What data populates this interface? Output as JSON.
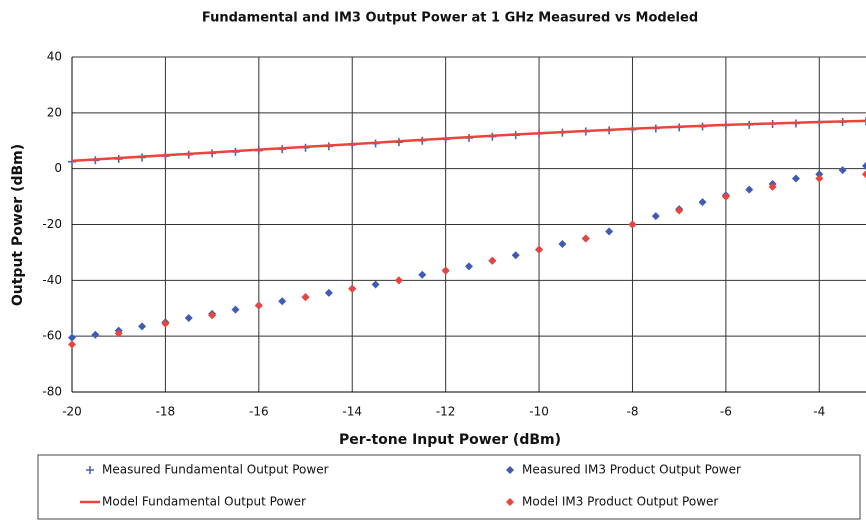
{
  "chart_data": {
    "type": "line",
    "title": "Fundamental and IM3 Output Power at 1 GHz Measured vs Modeled",
    "x_label": "Per-tone Input Power (dBm)",
    "y_label": "Output Power (dBm)",
    "xlim": [
      -20,
      -3
    ],
    "xticks": [
      -20,
      -18,
      -16,
      -14,
      -12,
      -10,
      -8,
      -6,
      -4
    ],
    "ylim": [
      -80,
      40
    ],
    "yticks": [
      -80,
      -60,
      -40,
      -20,
      0,
      20,
      40
    ],
    "grid": true,
    "legend": "bottom",
    "series": [
      {
        "name": "Measured Fundamental Output Power",
        "color": "#4a63b8",
        "style": "plus",
        "x": [
          -20,
          -19.5,
          -19,
          -18.5,
          -18,
          -17.5,
          -17,
          -16.5,
          -16,
          -15.5,
          -15,
          -14.5,
          -14,
          -13.5,
          -13,
          -12.5,
          -12,
          -11.5,
          -11,
          -10.5,
          -10,
          -9.5,
          -9,
          -8.5,
          -8,
          -7.5,
          -7,
          -6.5,
          -6,
          -5.5,
          -5,
          -4.5,
          -4,
          -3.5,
          -3
        ],
        "values": [
          2.5,
          3,
          3.5,
          4,
          4.5,
          5,
          5.5,
          6,
          6.5,
          7,
          7.5,
          8,
          8.5,
          9,
          9.5,
          10,
          10.5,
          11,
          11.5,
          12,
          12.5,
          12.9,
          13.3,
          13.7,
          14,
          14.4,
          14.8,
          15.1,
          15.5,
          15.7,
          16,
          16.2,
          16.5,
          16.7,
          17
        ]
      },
      {
        "name": "Measured IM3 Product Output Power",
        "color": "#3f5bb5",
        "style": "diamond",
        "x": [
          -20,
          -19.5,
          -19,
          -18.5,
          -18,
          -17.5,
          -17,
          -16.5,
          -16,
          -15.5,
          -15,
          -14.5,
          -14,
          -13.5,
          -13,
          -12.5,
          -12,
          -11.5,
          -11,
          -10.5,
          -10,
          -9.5,
          -9,
          -8.5,
          -8,
          -7.5,
          -7,
          -6.5,
          -6,
          -5.5,
          -5,
          -4.5,
          -4,
          -3.5,
          -3
        ],
        "values": [
          -60.5,
          -59.5,
          -58,
          -56.5,
          -55,
          -53.5,
          -52,
          -50.5,
          -49,
          -47.5,
          -46,
          -44.5,
          -43,
          -41.5,
          -40,
          -38,
          -36.5,
          -35,
          -33,
          -31,
          -29,
          -27,
          -25,
          -22.5,
          -20,
          -17,
          -14.5,
          -12,
          -9.5,
          -7.5,
          -5.5,
          -3.5,
          -2,
          -0.5,
          1
        ]
      },
      {
        "name": "Model Fundamental Output Power",
        "color": "#e8453c",
        "style": "line",
        "x": [
          -20,
          -19,
          -18,
          -17,
          -16,
          -15,
          -14,
          -13,
          -12,
          -11,
          -10,
          -9,
          -8,
          -7,
          -6,
          -5,
          -4,
          -3
        ],
        "values": [
          2.8,
          3.8,
          4.8,
          5.8,
          6.8,
          7.8,
          8.8,
          9.8,
          10.8,
          11.8,
          12.7,
          13.5,
          14.3,
          15,
          15.7,
          16.2,
          16.7,
          17.1
        ]
      },
      {
        "name": "Model IM3 Product Output Power",
        "color": "#e8453c",
        "style": "diamond",
        "x": [
          -20,
          -19,
          -18,
          -17,
          -16,
          -15,
          -14,
          -13,
          -12,
          -11,
          -10,
          -9,
          -8,
          -7,
          -6,
          -5,
          -4,
          -3
        ],
        "values": [
          -63,
          -59,
          -55.5,
          -52.5,
          -49,
          -46,
          -43,
          -40,
          -36.5,
          -33,
          -29,
          -25,
          -20,
          -15,
          -10,
          -6.5,
          -3.5,
          -2
        ]
      }
    ]
  }
}
